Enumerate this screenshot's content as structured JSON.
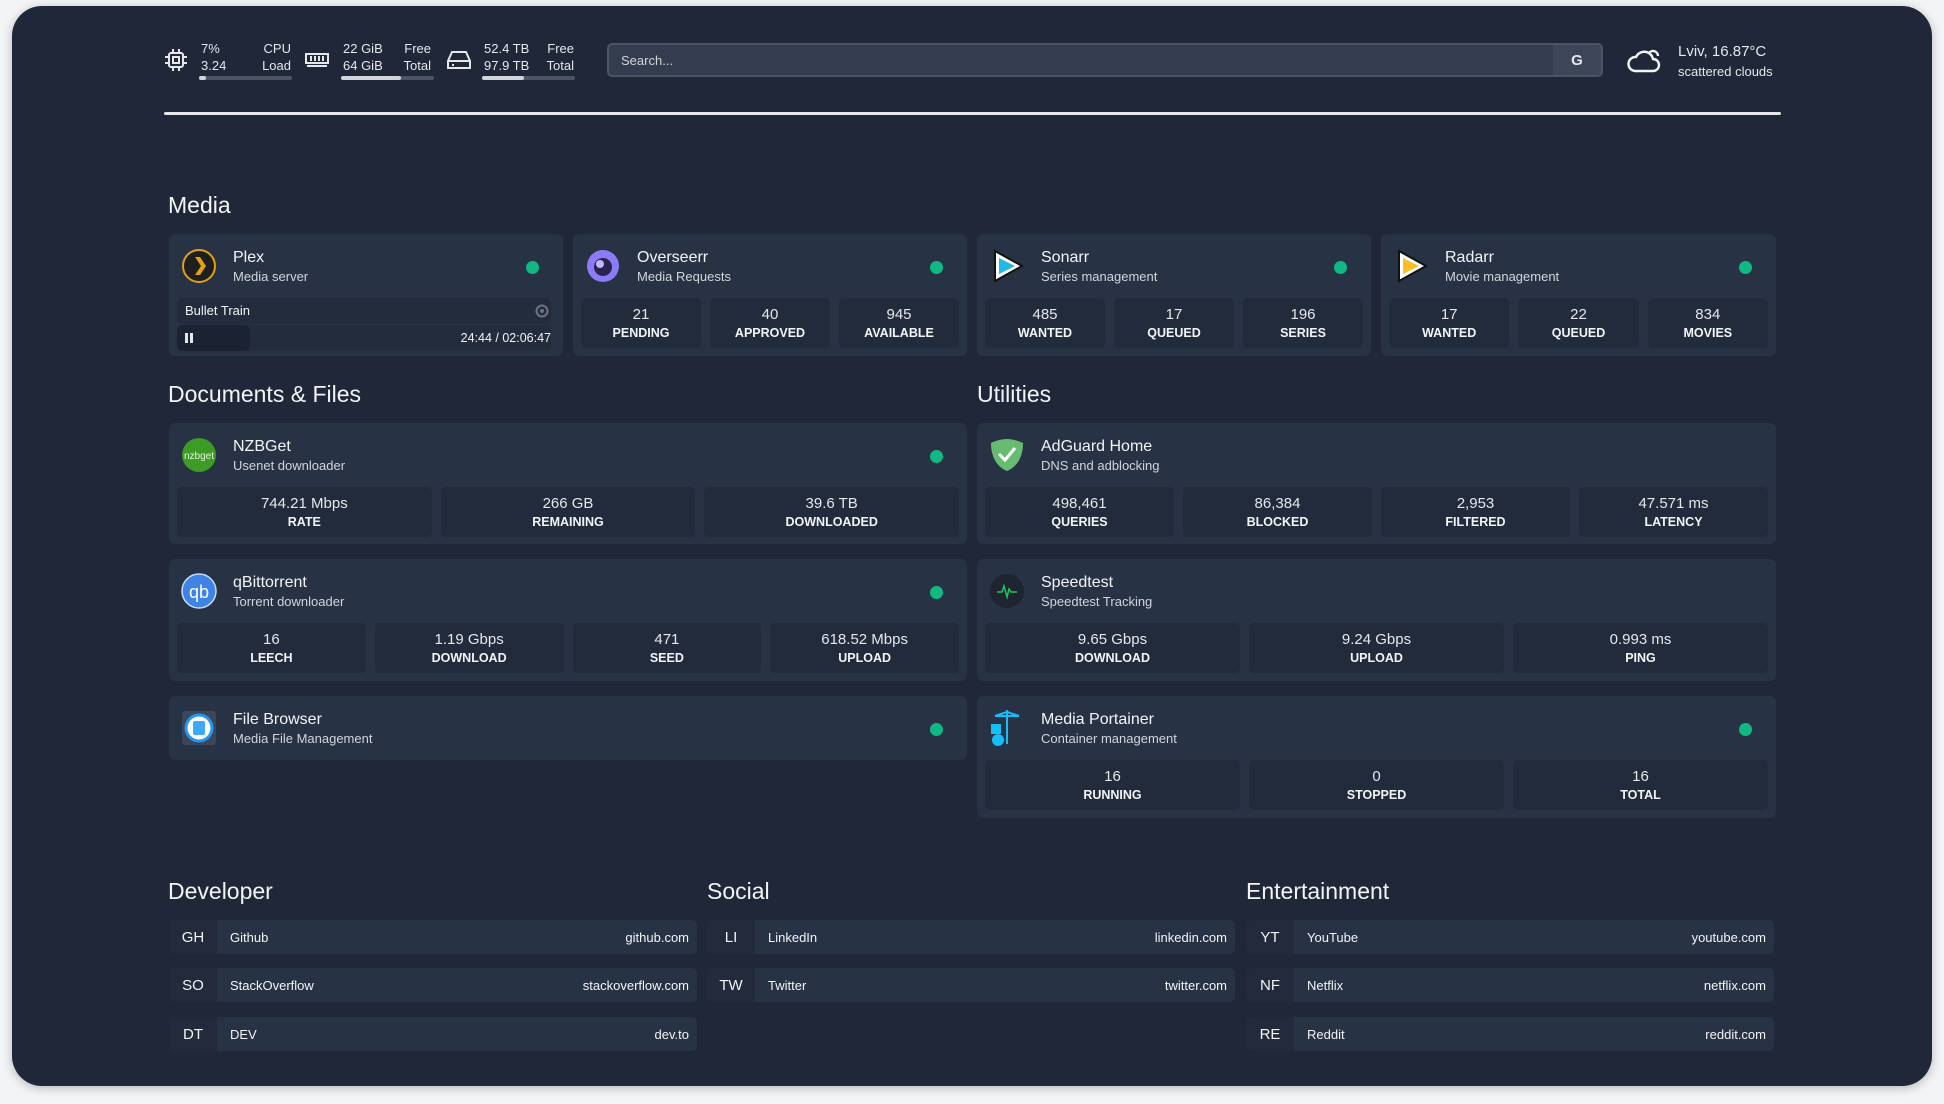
{
  "topbar": {
    "cpu": {
      "icon": "cpu-icon",
      "usage": "7%",
      "label": "CPU",
      "load": "3.24",
      "load_label": "Load",
      "fill_percent": 7
    },
    "memory": {
      "icon": "memory-icon",
      "used": "22 GiB",
      "used_label": "Free",
      "total": "64 GiB",
      "total_label": "Total",
      "fill_percent": 65
    },
    "disk": {
      "icon": "disk-icon",
      "free": "52.4 TB",
      "free_label": "Free",
      "total": "97.9 TB",
      "total_label": "Total",
      "fill_percent": 45
    },
    "search": {
      "placeholder": "Search...",
      "engine_button": "G"
    },
    "weather": {
      "icon": "cloud-icon",
      "location_temp": "Lviv, 16.87°C",
      "condition": "scattered clouds"
    }
  },
  "sections": {
    "media": "Media",
    "documents": "Documents & Files",
    "utilities": "Utilities",
    "developer": "Developer",
    "social": "Social",
    "entertainment": "Entertainment"
  },
  "plex": {
    "name": "Plex",
    "desc": "Media server",
    "icon": "plex-icon",
    "now_playing": "Bullet Train",
    "time": "24:44 / 02:06:47",
    "progress_percent": 19.5,
    "status": "online"
  },
  "cards": {
    "overseerr": {
      "name": "Overseerr",
      "desc": "Media Requests",
      "icon": "overseerr-icon",
      "status": "online",
      "stats": [
        {
          "v": "21",
          "l": "PENDING"
        },
        {
          "v": "40",
          "l": "APPROVED"
        },
        {
          "v": "945",
          "l": "AVAILABLE"
        }
      ]
    },
    "sonarr": {
      "name": "Sonarr",
      "desc": "Series management",
      "icon": "sonarr-icon",
      "status": "online",
      "stats": [
        {
          "v": "485",
          "l": "WANTED"
        },
        {
          "v": "17",
          "l": "QUEUED"
        },
        {
          "v": "196",
          "l": "SERIES"
        }
      ]
    },
    "radarr": {
      "name": "Radarr",
      "desc": "Movie management",
      "icon": "radarr-icon",
      "status": "online",
      "stats": [
        {
          "v": "17",
          "l": "WANTED"
        },
        {
          "v": "22",
          "l": "QUEUED"
        },
        {
          "v": "834",
          "l": "MOVIES"
        }
      ]
    },
    "nzbget": {
      "name": "NZBGet",
      "desc": "Usenet downloader",
      "icon": "nzbget-icon",
      "status": "online",
      "stats": [
        {
          "v": "744.21 Mbps",
          "l": "RATE"
        },
        {
          "v": "266 GB",
          "l": "REMAINING"
        },
        {
          "v": "39.6 TB",
          "l": "DOWNLOADED"
        }
      ]
    },
    "qbittorrent": {
      "name": "qBittorrent",
      "desc": "Torrent downloader",
      "icon": "qbittorrent-icon",
      "status": "online",
      "stats": [
        {
          "v": "16",
          "l": "LEECH"
        },
        {
          "v": "1.19 Gbps",
          "l": "DOWNLOAD"
        },
        {
          "v": "471",
          "l": "SEED"
        },
        {
          "v": "618.52 Mbps",
          "l": "UPLOAD"
        }
      ]
    },
    "filebrowser": {
      "name": "File Browser",
      "desc": "Media File Management",
      "icon": "filebrowser-icon",
      "status": "online",
      "stats": []
    },
    "adguard": {
      "name": "AdGuard Home",
      "desc": "DNS and adblocking",
      "icon": "adguard-icon",
      "stats": [
        {
          "v": "498,461",
          "l": "QUERIES"
        },
        {
          "v": "86,384",
          "l": "BLOCKED"
        },
        {
          "v": "2,953",
          "l": "FILTERED"
        },
        {
          "v": "47.571 ms",
          "l": "LATENCY"
        }
      ]
    },
    "speedtest": {
      "name": "Speedtest",
      "desc": "Speedtest Tracking",
      "icon": "speedtest-icon",
      "stats": [
        {
          "v": "9.65 Gbps",
          "l": "DOWNLOAD"
        },
        {
          "v": "9.24 Gbps",
          "l": "UPLOAD"
        },
        {
          "v": "0.993 ms",
          "l": "PING"
        }
      ]
    },
    "portainer": {
      "name": "Media Portainer",
      "desc": "Container management",
      "icon": "portainer-icon",
      "status": "online",
      "stats": [
        {
          "v": "16",
          "l": "RUNNING"
        },
        {
          "v": "0",
          "l": "STOPPED"
        },
        {
          "v": "16",
          "l": "TOTAL"
        }
      ]
    }
  },
  "bookmarks": {
    "developer": [
      {
        "abbr": "GH",
        "name": "Github",
        "url": "github.com"
      },
      {
        "abbr": "SO",
        "name": "StackOverflow",
        "url": "stackoverflow.com"
      },
      {
        "abbr": "DT",
        "name": "DEV",
        "url": "dev.to"
      }
    ],
    "social": [
      {
        "abbr": "LI",
        "name": "LinkedIn",
        "url": "linkedin.com"
      },
      {
        "abbr": "TW",
        "name": "Twitter",
        "url": "twitter.com"
      }
    ],
    "entertainment": [
      {
        "abbr": "YT",
        "name": "YouTube",
        "url": "youtube.com"
      },
      {
        "abbr": "NF",
        "name": "Netflix",
        "url": "netflix.com"
      },
      {
        "abbr": "RE",
        "name": "Reddit",
        "url": "reddit.com"
      }
    ]
  },
  "colors": {
    "background": "#1f2739",
    "card": "#283245",
    "stat_block": "#222b3c",
    "status_online": "#10b981"
  }
}
